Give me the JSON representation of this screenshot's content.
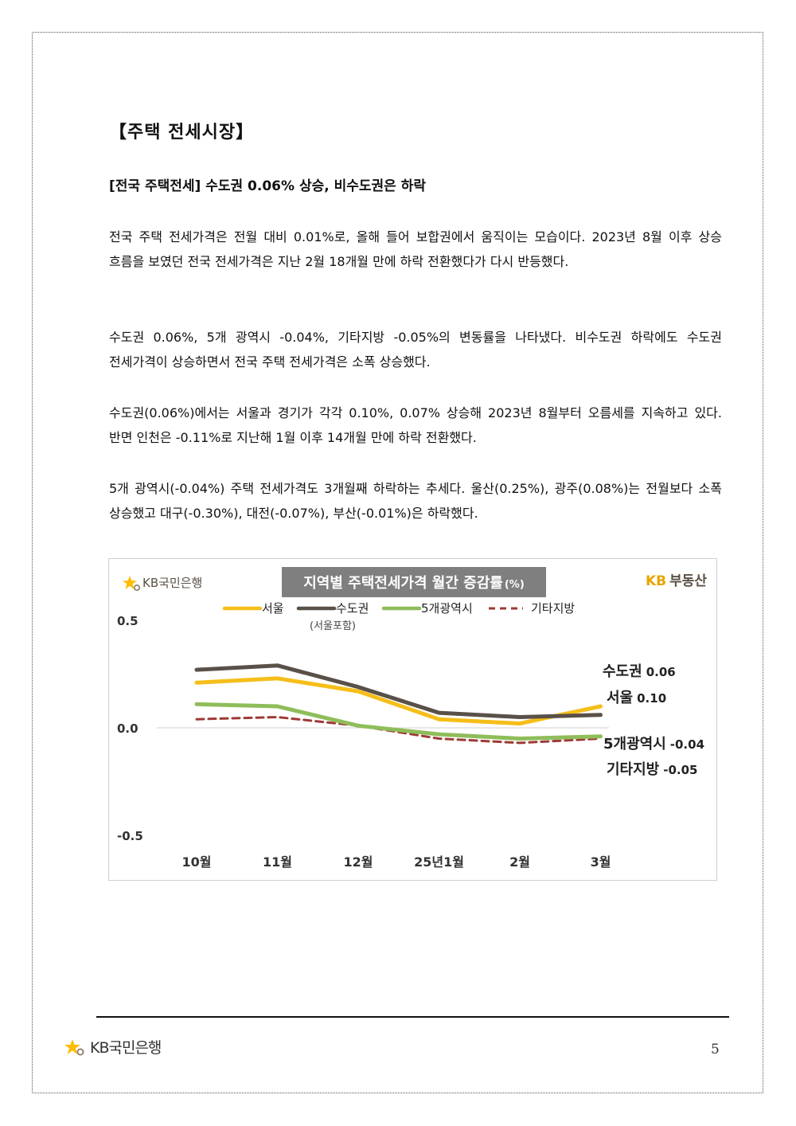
{
  "document": {
    "section_title": "【주택 전세시장】",
    "subtitle": "[전국 주택전세] 수도권 0.06% 상승, 비수도권은 하락",
    "paragraphs": [
      "전국 주택 전세가격은 전월 대비 0.01%로, 올해 들어 보합권에서 움직이는 모습이다. 2023년 8월 이후 상승 흐름을 보였던 전국 전세가격은 지난 2월 18개월 만에 하락 전환했다가 다시 반등했다.",
      "수도권 0.06%, 5개 광역시 -0.04%, 기타지방 -0.05%의 변동률을 나타냈다. 비수도권 하락에도 수도권 전세가격이 상승하면서 전국 주택 전세가격은 소폭 상승했다.",
      "수도권(0.06%)에서는 서울과 경기가 각각 0.10%, 0.07% 상승해 2023년 8월부터 오름세를 지속하고 있다. 반면 인천은 -0.11%로 지난해 1월 이후 14개월 만에 하락 전환했다.",
      "5개 광역시(-0.04%) 주택 전세가격도 3개월째 하락하는 추세다. 울산(0.25%), 광주(0.08%)는 전월보다 소폭 상승했고 대구(-0.30%), 대전(-0.07%), 부산(-0.01%)은 하락했다."
    ]
  },
  "chart_data": {
    "type": "line",
    "title": "지역별 주택전세가격 월간 증감률",
    "title_unit": "(%)",
    "logo_left": "KB국민은행",
    "logo_right_kb": "KB",
    "logo_right_text": "부동산",
    "categories": [
      "10월",
      "11월",
      "12월",
      "25년1월",
      "2월",
      "3월"
    ],
    "ylim": [
      -0.5,
      0.5
    ],
    "yticks": [
      "0.5",
      "0.0",
      "-0.5"
    ],
    "ytick_values": [
      0.5,
      0.0,
      -0.5
    ],
    "legend_position": "top",
    "series": [
      {
        "name": "서울",
        "values": [
          0.21,
          0.23,
          0.17,
          0.04,
          0.02,
          0.1
        ],
        "color": "#F5BE19",
        "dash": false,
        "end_label_name": "서울",
        "end_label_value": "0.10"
      },
      {
        "name": "수도권",
        "note": "(서울포함)",
        "values": [
          0.27,
          0.29,
          0.19,
          0.07,
          0.05,
          0.06
        ],
        "color": "#595048",
        "dash": false,
        "end_label_name": "수도권",
        "end_label_value": "0.06"
      },
      {
        "name": "5개광역시",
        "values": [
          0.11,
          0.1,
          0.01,
          -0.03,
          -0.05,
          -0.04
        ],
        "color": "#8FBD5A",
        "dash": false,
        "end_label_name": "5개광역시",
        "end_label_value": "-0.04"
      },
      {
        "name": "기타지방",
        "values": [
          0.04,
          0.05,
          0.01,
          -0.05,
          -0.07,
          -0.05
        ],
        "color": "#9E3A35",
        "dash": true,
        "end_label_name": "기타지방",
        "end_label_value": "-0.05"
      }
    ]
  },
  "footer": {
    "logo_text": "KB국민은행",
    "page_number": "5"
  },
  "colors": {
    "kb_yellow": "#FFBC00",
    "title_bg": "#7F7F7F"
  }
}
